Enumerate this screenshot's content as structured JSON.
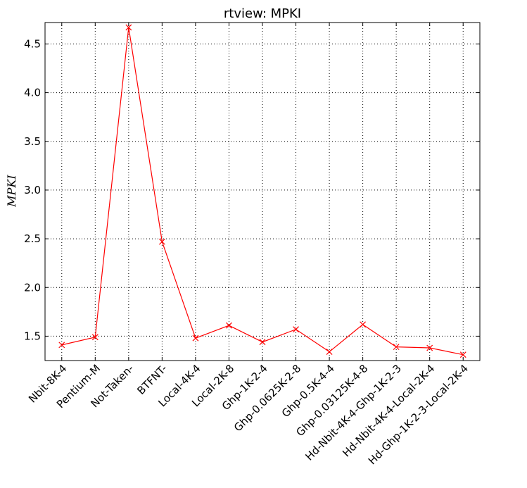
{
  "chart_data": {
    "type": "line",
    "title": "rtview: MPKI",
    "xlabel": "",
    "ylabel": "MPKI",
    "categories": [
      "Nbit-8K-4",
      "Pentium-M",
      "Not-Taken-",
      "BTFNT-",
      "Local-4K-4",
      "Local-2K-8",
      "Ghp-1K-2-4",
      "Ghp-0.0625K-2-8",
      "Ghp-0.5K-4-4",
      "Ghp-0.03125K-4-8",
      "Hd-Nbit-4K-4-Ghp-1K-2-3",
      "Hd-Nbit-4K-4-Local-2K-4",
      "Hd-Ghp-1K-2-3-Local-2K-4"
    ],
    "series": [
      {
        "values": [
          1.41,
          1.49,
          4.67,
          2.47,
          1.48,
          1.61,
          1.44,
          1.57,
          1.34,
          1.62,
          1.39,
          1.38,
          1.31
        ],
        "color": "#ff0000",
        "marker": "x"
      }
    ],
    "ylim": [
      1.25,
      4.72
    ],
    "yticks": [
      1.5,
      2.0,
      2.5,
      3.0,
      3.5,
      4.0,
      4.5
    ],
    "ytick_labels": [
      "1.5",
      "2.0",
      "2.5",
      "3.0",
      "3.5",
      "4.0",
      "4.5"
    ],
    "grid": true,
    "legend": "none"
  }
}
